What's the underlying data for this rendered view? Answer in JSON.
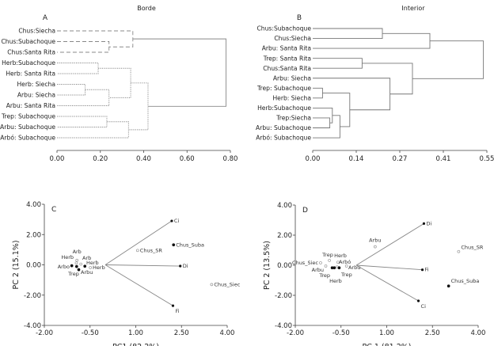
{
  "chart_data": [
    {
      "type": "dendrogram",
      "panel": "A",
      "title": "Borde",
      "leaves": [
        "Chus:Siecha",
        "Chus:Subachoque",
        "Chus:Santa Rita",
        "Herb:Subachoque",
        "Herb: Santa Rita",
        "Herb: Siecha",
        "Arbu: Siecha",
        "Arbu: Santa Rita",
        "Trep: Subachoque",
        "Arbu: Subachoque",
        "Arbó: Subachoque"
      ],
      "merges": [
        {
          "a": "L1",
          "b": "L2",
          "height": 0.24,
          "style": "dashed",
          "id": "m1"
        },
        {
          "a": "L0",
          "b": "m1",
          "height": 0.35,
          "style": "dashed",
          "id": "m2"
        },
        {
          "a": "L3",
          "b": "L4",
          "height": 0.19,
          "style": "dotted",
          "id": "m3"
        },
        {
          "a": "L5",
          "b": "L6",
          "height": 0.13,
          "style": "dotted",
          "id": "m4"
        },
        {
          "a": "m4",
          "b": "L7",
          "height": 0.24,
          "style": "dotted",
          "id": "m5"
        },
        {
          "a": "m3",
          "b": "m5",
          "height": 0.34,
          "style": "dotted",
          "id": "m6"
        },
        {
          "a": "L8",
          "b": "L9",
          "height": 0.23,
          "style": "dotted",
          "id": "m7"
        },
        {
          "a": "m7",
          "b": "L10",
          "height": 0.33,
          "style": "dotted",
          "id": "m8"
        },
        {
          "a": "m6",
          "b": "m8",
          "height": 0.42,
          "style": "dotted",
          "id": "m9"
        },
        {
          "a": "m2",
          "b": "m9",
          "height": 0.78,
          "style": "solid",
          "id": "m10"
        }
      ],
      "xlim": [
        0,
        0.8
      ],
      "xticks": [
        "0.00",
        "0.20",
        "0.40",
        "0.60",
        "0.80"
      ]
    },
    {
      "type": "dendrogram",
      "panel": "B",
      "title": "Interior",
      "leaves": [
        "Chus:Subachoque",
        "Chus:Siecha",
        "Arbu: Santa Rita",
        "Trep: Santa Rita",
        "Chus:Santa Rita",
        "Arbu: Siecha",
        "Trep: Subachoque",
        "Herb: Siecha",
        "Herb:Subachoque",
        "Trep:Siecha",
        "Arbu: Subachoque",
        "Arbó: Subachoque"
      ],
      "merges": [
        {
          "a": "L0",
          "b": "L1",
          "height": 0.22,
          "id": "m1"
        },
        {
          "a": "m1",
          "b": "L2",
          "height": 0.37,
          "id": "m2"
        },
        {
          "a": "L3",
          "b": "L4",
          "height": 0.156,
          "id": "m3"
        },
        {
          "a": "L6",
          "b": "L7",
          "height": 0.031,
          "id": "m4"
        },
        {
          "a": "L9",
          "b": "L10",
          "height": 0.054,
          "id": "m5"
        },
        {
          "a": "L8",
          "b": "m5",
          "height": 0.062,
          "id": "m6"
        },
        {
          "a": "m6",
          "b": "L11",
          "height": 0.086,
          "id": "m7"
        },
        {
          "a": "m4",
          "b": "m7",
          "height": 0.117,
          "id": "m8"
        },
        {
          "a": "L5",
          "b": "m8",
          "height": 0.244,
          "id": "m9"
        },
        {
          "a": "m3",
          "b": "m9",
          "height": 0.315,
          "id": "m10"
        },
        {
          "a": "m2",
          "b": "m10",
          "height": 0.539,
          "id": "m11"
        }
      ],
      "xlim": [
        0,
        0.55
      ],
      "xticks": [
        "0.00",
        "0.14",
        "0.27",
        "0.41",
        "0.55"
      ]
    },
    {
      "type": "scatter",
      "panel": "C",
      "xlabel": "PC1 (82.2%)",
      "ylabel": "PC 2 (15.1%)",
      "xlim": [
        -2,
        4
      ],
      "ylim": [
        -4,
        4
      ],
      "xticks": [
        "-2.00",
        "-0.50",
        "1.00",
        "2.50",
        "4.00"
      ],
      "yticks": [
        "4.00",
        "2.00",
        "0.00",
        "-2.00",
        "-4.00"
      ],
      "vectors": [
        {
          "label": "Ci",
          "x": 2.18,
          "y": 2.9
        },
        {
          "label": "Di",
          "x": 2.46,
          "y": -0.08
        },
        {
          "label": "Fi",
          "x": 2.22,
          "y": -2.7
        }
      ],
      "points": [
        {
          "label": "Chus_Suba",
          "x": 2.24,
          "y": 1.32,
          "filled": true
        },
        {
          "label": "Chus_SR",
          "x": 1.06,
          "y": 0.95,
          "filled": false
        },
        {
          "label": "Chus_Siec",
          "x": 3.49,
          "y": -1.3,
          "filled": false
        },
        {
          "label": "Herb",
          "x": -0.95,
          "y": 0.12,
          "filled": false
        },
        {
          "label": "Arb",
          "x": -0.93,
          "y": 0.3,
          "filled": false
        },
        {
          "label": "Arb",
          "x": -0.8,
          "y": 0.05,
          "filled": false
        },
        {
          "label": "Herb",
          "x": -0.67,
          "y": -0.09,
          "filled": true
        },
        {
          "label": "Arbo",
          "x": -1.1,
          "y": -0.06,
          "filled": true
        },
        {
          "label": "Trep",
          "x": -0.94,
          "y": -0.11,
          "filled": true
        },
        {
          "label": "Arbu",
          "x": -0.87,
          "y": -0.32,
          "filled": true
        },
        {
          "label": "Herb",
          "x": -0.49,
          "y": -0.18,
          "filled": false
        }
      ]
    },
    {
      "type": "scatter",
      "panel": "D",
      "xlabel": "PC 1 (81.2%)",
      "ylabel": "PC 2 (13.5%)",
      "xlim": [
        -2,
        4
      ],
      "ylim": [
        -4,
        4
      ],
      "xticks": [
        "-2.00",
        "-0.50",
        "1.00",
        "2.50",
        "4.00"
      ],
      "yticks": [
        "4.00",
        "2.00",
        "0.00",
        "-2.00",
        "-4.00"
      ],
      "vectors": [
        {
          "label": "Di",
          "x": 2.22,
          "y": 2.77
        },
        {
          "label": "Fi",
          "x": 2.17,
          "y": -0.3
        },
        {
          "label": "Ci",
          "x": 2.04,
          "y": -2.37
        }
      ],
      "points": [
        {
          "label": "Arbu",
          "x": 0.62,
          "y": 1.23,
          "filled": false
        },
        {
          "label": "Chus_SR",
          "x": 3.36,
          "y": 0.91,
          "filled": false
        },
        {
          "label": "Chus_Suba",
          "x": 3.03,
          "y": -1.38,
          "filled": true
        },
        {
          "label": "Chus_Siec",
          "x": -1.17,
          "y": 0.16,
          "filled": false
        },
        {
          "label": "Trep",
          "x": -0.88,
          "y": 0.32,
          "filled": false
        },
        {
          "label": "Arbu",
          "x": -1.0,
          "y": -0.05,
          "filled": false
        },
        {
          "label": "Trep",
          "x": -0.79,
          "y": -0.17,
          "filled": true
        },
        {
          "label": "Herb",
          "x": -0.72,
          "y": -0.17,
          "filled": true
        },
        {
          "label": "Herb",
          "x": -0.6,
          "y": 0.2,
          "filled": false
        },
        {
          "label": "Arbó",
          "x": -0.63,
          "y": -0.12,
          "filled": false
        },
        {
          "label": "Trep",
          "x": -0.56,
          "y": -0.17,
          "filled": true
        },
        {
          "label": "Arbu",
          "x": -0.32,
          "y": -0.05,
          "filled": false
        }
      ]
    }
  ]
}
